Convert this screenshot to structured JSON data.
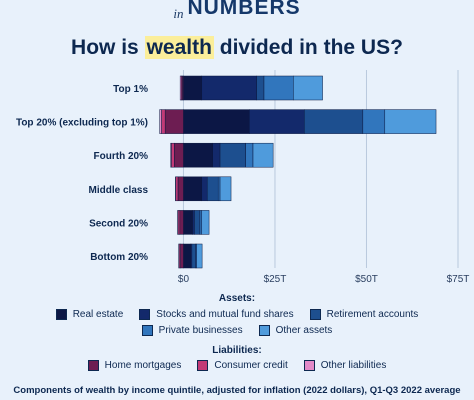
{
  "header": {
    "prefix": "in",
    "word": "NUMBERS"
  },
  "title": {
    "before": "How is ",
    "highlight": "wealth",
    "after": " divided in the US?"
  },
  "colors": {
    "real_estate": "#0c1745",
    "stocks": "#13296b",
    "retirement": "#1d4f8f",
    "private_business": "#3176bd",
    "other_assets": "#4f9bdc",
    "home_mortgages": "#6d1d52",
    "consumer_credit": "#c23a76",
    "other_liabilities": "#e38ac8"
  },
  "chart_data": {
    "type": "bar",
    "orientation": "horizontal",
    "stacked": true,
    "title": "How is wealth divided in the US?",
    "categories": [
      "Top 1%",
      "Top 20% (excluding top 1%)",
      "Fourth 20%",
      "Middle class",
      "Second 20%",
      "Bottom 20%"
    ],
    "x_ticks": [
      {
        "value": 0,
        "label": "$0"
      },
      {
        "value": 25,
        "label": "$25T"
      },
      {
        "value": 50,
        "label": "$50T"
      },
      {
        "value": 75,
        "label": "$75T"
      }
    ],
    "xlim": [
      -7.5,
      75
    ],
    "units": "trillions of dollars",
    "grid": true,
    "asset_series": [
      {
        "name": "Real estate",
        "color_key": "real_estate",
        "values": [
          5,
          18,
          8,
          5,
          2.5,
          2
        ]
      },
      {
        "name": "Stocks and mutual fund shares",
        "color_key": "stocks",
        "values": [
          15,
          15,
          2,
          1.5,
          0.5,
          0.3
        ]
      },
      {
        "name": "Retirement accounts",
        "color_key": "retirement",
        "values": [
          2,
          16,
          7,
          3,
          1.5,
          1
        ]
      },
      {
        "name": "Private businesses",
        "color_key": "private_business",
        "values": [
          8,
          6,
          2,
          0.5,
          0.5,
          0.3
        ]
      },
      {
        "name": "Other assets",
        "color_key": "other_assets",
        "values": [
          8,
          14,
          5.5,
          3,
          2,
          1.5
        ]
      }
    ],
    "liability_series": [
      {
        "name": "Home mortgages",
        "color_key": "home_mortgages",
        "values": [
          -0.3,
          -5,
          -2.5,
          -1.5,
          -1,
          -0.8
        ]
      },
      {
        "name": "Consumer credit",
        "color_key": "consumer_credit",
        "values": [
          -0.3,
          -1,
          -0.8,
          -0.6,
          -0.5,
          -0.4
        ]
      },
      {
        "name": "Other liabilities",
        "color_key": "other_liabilities",
        "values": [
          -0.3,
          -0.5,
          -0.2,
          -0.1,
          -0.1,
          -0.1
        ]
      }
    ]
  },
  "legend": {
    "assets_title": "Assets:",
    "liabilities_title": "Liabilities:",
    "assets_row1": [
      {
        "label": "Real estate",
        "color_key": "real_estate"
      },
      {
        "label": "Stocks and mutual fund shares",
        "color_key": "stocks"
      },
      {
        "label": "Retirement accounts",
        "color_key": "retirement"
      }
    ],
    "assets_row2": [
      {
        "label": "Private businesses",
        "color_key": "private_business"
      },
      {
        "label": "Other assets",
        "color_key": "other_assets"
      }
    ],
    "liabilities_row": [
      {
        "label": "Home mortgages",
        "color_key": "home_mortgages"
      },
      {
        "label": "Consumer credit",
        "color_key": "consumer_credit"
      },
      {
        "label": "Other liabilities",
        "color_key": "other_liabilities"
      }
    ]
  },
  "footnote": "Components of wealth by income quintile, adjusted for inflation (2022 dollars), Q1-Q3 2022 average"
}
